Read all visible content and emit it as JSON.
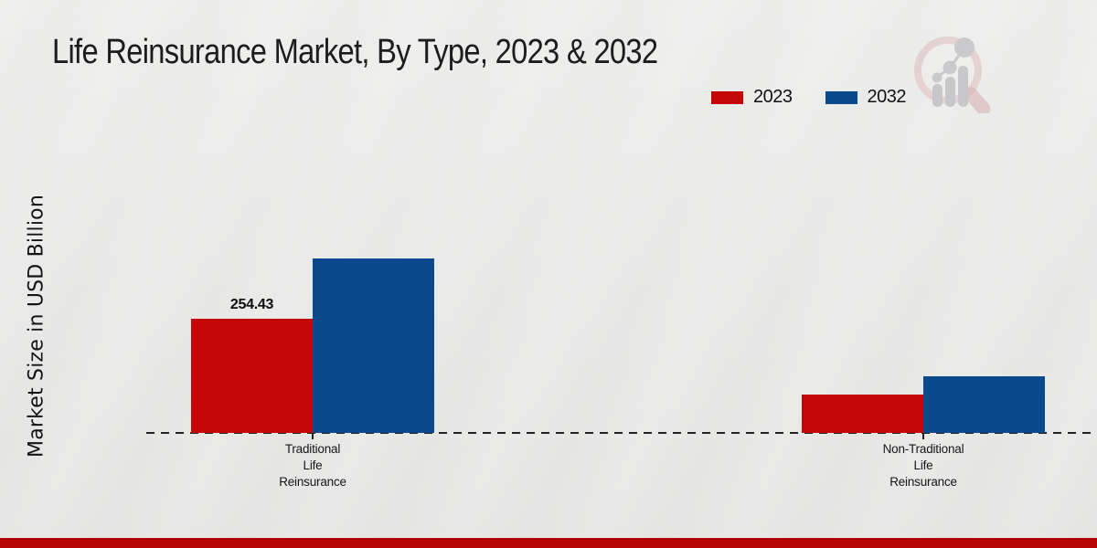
{
  "page": {
    "title": "Life Reinsurance Market, By Type, 2023 & 2032"
  },
  "chart_data": {
    "type": "bar",
    "title": "Life Reinsurance Market, By Type, 2023 & 2032",
    "xlabel": "",
    "ylabel": "Market Size in USD Billion",
    "categories": [
      "Traditional Life Reinsurance",
      "Non-Traditional Life Reinsurance"
    ],
    "category_label_lines": [
      [
        "Traditional",
        "Life",
        "Reinsurance"
      ],
      [
        "Non-Traditional",
        "Life",
        "Reinsurance"
      ]
    ],
    "series": [
      {
        "name": "2023",
        "color": "#c40606",
        "values": [
          254.43,
          85.5
        ]
      },
      {
        "name": "2032",
        "color": "#0a4a8c",
        "values": [
          388.8,
          126.3
        ]
      }
    ],
    "data_labels": [
      {
        "series_index": 0,
        "category_index": 0,
        "text": "254.43"
      }
    ],
    "legend_position": "top-right",
    "grid": false,
    "y_axis_ticks_visible": false,
    "baseline_style": "dashed"
  },
  "branding": {
    "watermark_icon": "magnifier-bar-chart-icon"
  },
  "colors": {
    "background": "#e8e8e7",
    "series_2023": "#c40606",
    "series_2032": "#0a4a8c",
    "footer_bar": "#b20404",
    "axis_line": "#222222",
    "text": "#1b1b1b"
  }
}
